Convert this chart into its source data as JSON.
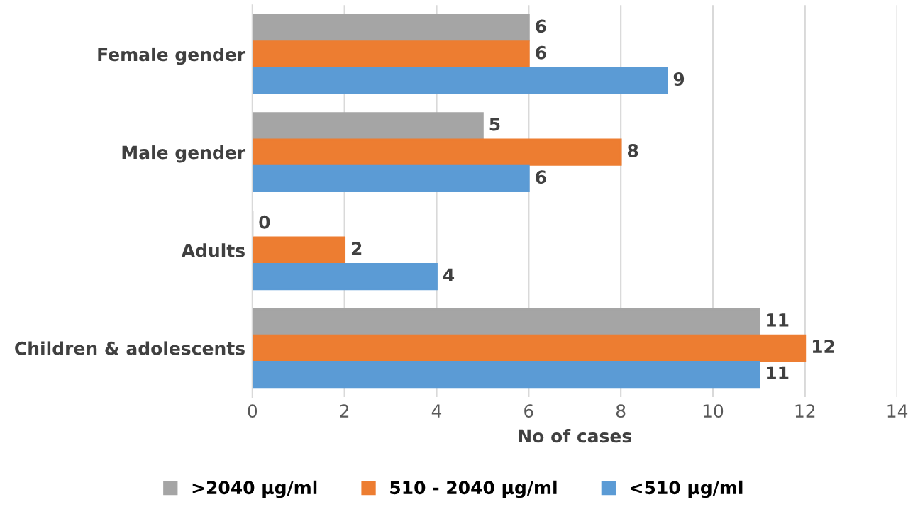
{
  "chart_data": {
    "type": "bar",
    "orientation": "horizontal",
    "xlabel": "No of cases",
    "categories": [
      "Female gender",
      "Male gender",
      "Adults",
      "Children & adolescents"
    ],
    "series": [
      {
        "name": ">2040 µg/ml",
        "color": "#a5a5a5",
        "values": [
          6,
          5,
          0,
          11
        ]
      },
      {
        "name": "510 - 2040 µg/ml",
        "color": "#ed7d31",
        "values": [
          6,
          8,
          2,
          12
        ]
      },
      {
        "name": "<510 µg/ml",
        "color": "#5b9bd5",
        "values": [
          9,
          6,
          4,
          11
        ]
      }
    ],
    "xlim": [
      0,
      14
    ],
    "xticks": [
      0,
      2,
      4,
      6,
      8,
      10,
      12,
      14
    ],
    "grid": "x",
    "legend": "bottom",
    "data_labels": true
  }
}
